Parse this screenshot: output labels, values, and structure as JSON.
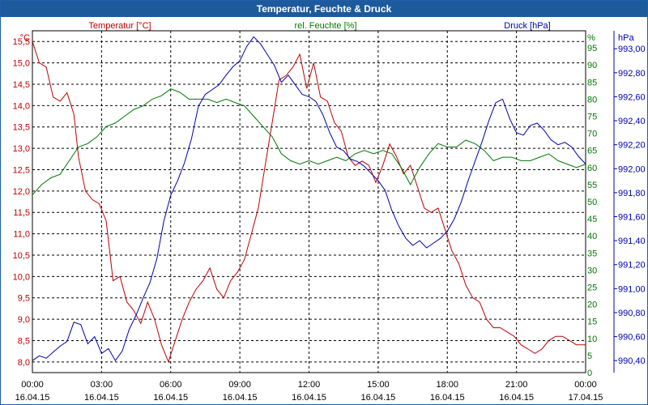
{
  "window": {
    "title": "Temperatur, Feuchte & Druck"
  },
  "colors": {
    "temperature": "#c00000",
    "humidity": "#007800",
    "pressure": "#0000b0",
    "grid": "#000000",
    "title_bar": "#1d5a9c"
  },
  "chart_data": {
    "type": "line",
    "title": "Temperatur, Feuchte & Druck",
    "grid": true,
    "x": {
      "tick_times": [
        "00:00",
        "03:00",
        "06:00",
        "09:00",
        "12:00",
        "15:00",
        "18:00",
        "21:00",
        "00:00"
      ],
      "tick_dates": [
        "16.04.15",
        "16.04.15",
        "16.04.15",
        "16.04.15",
        "16.04.15",
        "16.04.15",
        "16.04.15",
        "16.04.15",
        "17.04.15"
      ],
      "range_hours": [
        0,
        24
      ]
    },
    "axes": {
      "temperature": {
        "label": "Temperatur [°C]",
        "unit": "°C",
        "ylim": [
          7.75,
          15.75
        ],
        "ticks": [
          "8,0",
          "8,5",
          "9,0",
          "9,5",
          "10,0",
          "10,5",
          "11,0",
          "11,5",
          "12,0",
          "12,5",
          "13,0",
          "13,5",
          "14,0",
          "14,5",
          "15,0",
          "15,5"
        ],
        "tick_values": [
          8.0,
          8.5,
          9.0,
          9.5,
          10.0,
          10.5,
          11.0,
          11.5,
          12.0,
          12.5,
          13.0,
          13.5,
          14.0,
          14.5,
          15.0,
          15.5
        ]
      },
      "humidity": {
        "label": "rel. Feuchte [%]",
        "unit": "%",
        "ylim": [
          0,
          100
        ],
        "ticks": [
          "0",
          "5",
          "10",
          "15",
          "20",
          "25",
          "30",
          "35",
          "40",
          "45",
          "50",
          "55",
          "60",
          "65",
          "70",
          "75",
          "80",
          "85",
          "90",
          "95"
        ],
        "tick_values": [
          0,
          5,
          10,
          15,
          20,
          25,
          30,
          35,
          40,
          45,
          50,
          55,
          60,
          65,
          70,
          75,
          80,
          85,
          90,
          95
        ]
      },
      "pressure": {
        "label": "Druck [hPa]",
        "unit": "hPa",
        "ylim": [
          990.3,
          993.15
        ],
        "ticks": [
          "990,40",
          "990,60",
          "990,80",
          "991,00",
          "991,20",
          "991,40",
          "991,60",
          "991,80",
          "992,00",
          "992,20",
          "992,40",
          "992,60",
          "992,80",
          "993,00"
        ],
        "tick_values": [
          990.4,
          990.6,
          990.8,
          991.0,
          991.2,
          991.4,
          991.6,
          991.8,
          992.0,
          992.2,
          992.4,
          992.6,
          992.8,
          993.0
        ]
      }
    },
    "series": [
      {
        "name": "Temperatur [°C]",
        "axis": "temperature",
        "x": [
          0,
          0.3,
          0.6,
          0.9,
          1.2,
          1.5,
          1.8,
          2.0,
          2.3,
          2.6,
          2.9,
          3.2,
          3.5,
          3.8,
          4.1,
          4.4,
          4.7,
          5.0,
          5.3,
          5.6,
          5.9,
          6.2,
          6.5,
          6.8,
          7.1,
          7.4,
          7.7,
          8.0,
          8.3,
          8.6,
          8.9,
          9.2,
          9.5,
          9.8,
          10.1,
          10.4,
          10.7,
          11.0,
          11.3,
          11.6,
          11.9,
          12.2,
          12.5,
          12.8,
          13.1,
          13.4,
          13.7,
          14.0,
          14.3,
          14.6,
          14.9,
          15.2,
          15.5,
          15.8,
          16.1,
          16.4,
          16.7,
          17.0,
          17.3,
          17.6,
          17.9,
          18.2,
          18.5,
          18.8,
          19.1,
          19.4,
          19.7,
          20.0,
          20.3,
          20.6,
          20.9,
          21.2,
          21.5,
          21.8,
          22.1,
          22.4,
          22.7,
          23.0,
          23.3,
          23.6,
          23.9,
          24.0
        ],
        "values": [
          15.5,
          15.0,
          14.9,
          14.2,
          14.1,
          14.3,
          13.8,
          12.8,
          12.0,
          11.8,
          11.7,
          11.3,
          9.9,
          10.0,
          9.4,
          9.2,
          8.9,
          9.4,
          9.0,
          8.4,
          8.0,
          8.5,
          9.0,
          9.4,
          9.7,
          9.9,
          10.2,
          9.7,
          9.5,
          9.9,
          10.1,
          10.4,
          11.0,
          11.6,
          12.6,
          13.6,
          14.6,
          14.7,
          14.9,
          15.2,
          14.4,
          15.0,
          14.2,
          14.1,
          13.6,
          13.4,
          12.8,
          12.6,
          12.7,
          12.6,
          12.2,
          12.6,
          13.1,
          12.8,
          12.4,
          12.6,
          12.1,
          11.6,
          11.5,
          11.6,
          11.1,
          10.6,
          10.3,
          9.8,
          9.5,
          9.4,
          9.0,
          8.8,
          8.8,
          8.7,
          8.6,
          8.4,
          8.3,
          8.2,
          8.3,
          8.5,
          8.6,
          8.6,
          8.5,
          8.4,
          8.4,
          8.4
        ]
      },
      {
        "name": "rel. Feuchte [%]",
        "axis": "humidity",
        "x": [
          0,
          0.4,
          0.8,
          1.2,
          1.6,
          2.0,
          2.4,
          2.8,
          3.2,
          3.6,
          4.0,
          4.4,
          4.8,
          5.2,
          5.6,
          6.0,
          6.4,
          6.8,
          7.2,
          7.6,
          8.0,
          8.4,
          8.8,
          9.2,
          9.6,
          10.0,
          10.4,
          10.8,
          11.2,
          11.6,
          12.0,
          12.4,
          12.8,
          13.2,
          13.6,
          14.0,
          14.4,
          14.8,
          15.2,
          15.6,
          16.0,
          16.4,
          16.8,
          17.2,
          17.6,
          18.0,
          18.4,
          18.8,
          19.2,
          19.6,
          20.0,
          20.4,
          20.8,
          21.2,
          21.6,
          22.0,
          22.4,
          22.8,
          23.2,
          23.6,
          24.0
        ],
        "values": [
          52,
          55,
          57,
          58,
          62,
          66,
          67,
          69,
          72,
          73,
          75,
          77,
          78,
          80,
          81,
          83,
          82,
          80,
          80,
          80,
          79,
          80,
          79,
          78,
          75,
          72,
          69,
          64,
          62,
          61,
          62,
          61,
          62,
          63,
          62,
          64,
          65,
          64,
          65,
          64,
          60,
          55,
          60,
          64,
          67,
          66,
          66,
          68,
          67,
          65,
          62,
          63,
          63,
          62,
          62,
          63,
          64,
          62,
          61,
          60,
          61
        ]
      },
      {
        "name": "Druck [hPa]",
        "axis": "pressure",
        "x": [
          0,
          0.3,
          0.6,
          0.9,
          1.2,
          1.5,
          1.8,
          2.1,
          2.4,
          2.7,
          3.0,
          3.3,
          3.6,
          3.9,
          4.2,
          4.5,
          4.8,
          5.1,
          5.4,
          5.7,
          6.0,
          6.3,
          6.6,
          6.9,
          7.2,
          7.5,
          7.8,
          8.1,
          8.4,
          8.7,
          9.0,
          9.3,
          9.6,
          9.9,
          10.2,
          10.5,
          10.8,
          11.1,
          11.4,
          11.7,
          12.0,
          12.3,
          12.6,
          12.9,
          13.2,
          13.5,
          13.8,
          14.1,
          14.4,
          14.7,
          15.0,
          15.3,
          15.6,
          15.9,
          16.2,
          16.5,
          16.8,
          17.1,
          17.4,
          17.7,
          18.0,
          18.3,
          18.6,
          18.9,
          19.2,
          19.5,
          19.8,
          20.1,
          20.4,
          20.7,
          21.0,
          21.3,
          21.6,
          21.9,
          22.2,
          22.5,
          22.8,
          23.1,
          23.4,
          23.7,
          24.0
        ],
        "values": [
          990.4,
          990.44,
          990.42,
          990.47,
          990.52,
          990.56,
          990.72,
          990.7,
          990.54,
          990.6,
          990.46,
          990.5,
          990.4,
          990.48,
          990.66,
          990.78,
          990.92,
          991.05,
          991.25,
          991.56,
          991.78,
          991.9,
          992.05,
          992.25,
          992.52,
          992.62,
          992.66,
          992.7,
          992.78,
          992.85,
          992.9,
          993.02,
          993.1,
          993.04,
          992.95,
          992.86,
          992.72,
          992.78,
          992.7,
          992.62,
          992.6,
          992.56,
          992.45,
          992.3,
          992.18,
          992.15,
          992.08,
          992.06,
          992.02,
          991.96,
          991.9,
          991.82,
          991.65,
          991.52,
          991.42,
          991.36,
          991.4,
          991.34,
          991.38,
          991.42,
          991.48,
          991.58,
          991.72,
          991.9,
          992.06,
          992.22,
          992.4,
          992.55,
          992.58,
          992.42,
          992.3,
          992.28,
          992.36,
          992.38,
          992.32,
          992.24,
          992.2,
          992.22,
          992.18,
          992.1,
          992.04
        ]
      }
    ]
  }
}
